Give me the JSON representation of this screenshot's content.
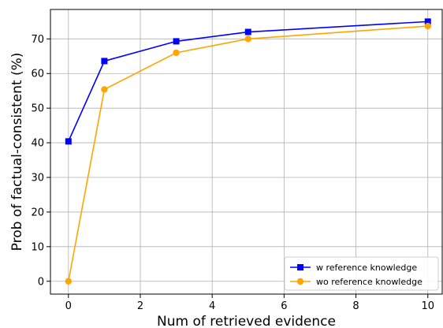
{
  "chart_data": {
    "type": "line",
    "title": "",
    "xlabel": "Num of retrieved evidence",
    "ylabel": "Prob of factual-consistent (%)",
    "xlim": [
      -0.5,
      10.4
    ],
    "ylim": [
      -3.7,
      78.5
    ],
    "xticks": [
      0,
      2,
      4,
      6,
      8,
      10
    ],
    "yticks": [
      0,
      10,
      20,
      30,
      40,
      50,
      60,
      70
    ],
    "grid": true,
    "legend_position": "lower-right",
    "series": [
      {
        "name": "w reference knowledge",
        "color": "#0000ff",
        "marker": "square",
        "x": [
          0,
          1,
          3,
          5,
          10
        ],
        "y": [
          40.4,
          63.6,
          69.3,
          72.0,
          75.0
        ]
      },
      {
        "name": "wo reference knowledge",
        "color": "#ffa500",
        "marker": "circle",
        "x": [
          0,
          1,
          3,
          5,
          10
        ],
        "y": [
          0.0,
          55.4,
          66.0,
          70.0,
          73.7
        ]
      }
    ]
  }
}
